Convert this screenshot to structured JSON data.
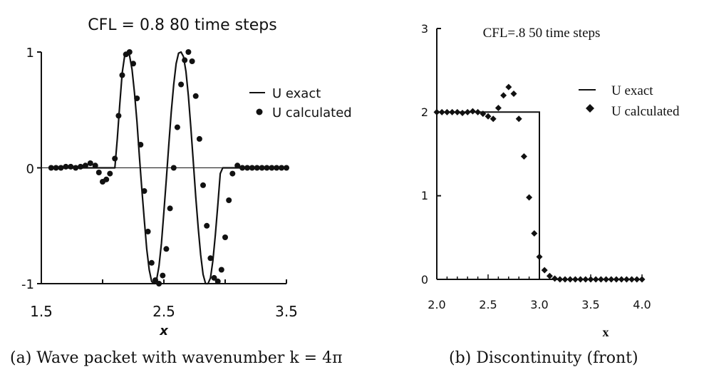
{
  "colors": {
    "ink": "#111111"
  },
  "chart_data": [
    {
      "type": "line",
      "title": "CFL = 0.8  80 time steps",
      "xlabel": "x",
      "ylabel": "",
      "xlim": [
        1.5,
        3.5
      ],
      "ylim": [
        -1,
        1
      ],
      "xticks": [
        "1.5",
        "2.5",
        "3.5"
      ],
      "yticks": [
        "-1",
        "0",
        "1"
      ],
      "legend": {
        "placement": "right-middle",
        "entries": [
          "U exact",
          "U calculated"
        ]
      },
      "caption": "(a)  Wave packet with wavenumber k = 4π",
      "series": [
        {
          "name": "U exact",
          "style": "line",
          "x": [
            1.6,
            1.7,
            1.8,
            1.9,
            2.0,
            2.05,
            2.1,
            2.12,
            2.14,
            2.16,
            2.18,
            2.2,
            2.22,
            2.24,
            2.26,
            2.28,
            2.3,
            2.32,
            2.34,
            2.36,
            2.38,
            2.4,
            2.42,
            2.44,
            2.46,
            2.48,
            2.5,
            2.52,
            2.54,
            2.56,
            2.58,
            2.6,
            2.62,
            2.64,
            2.66,
            2.68,
            2.7,
            2.72,
            2.74,
            2.76,
            2.78,
            2.8,
            2.82,
            2.84,
            2.86,
            2.88,
            2.9,
            2.92,
            2.94,
            2.96,
            2.98,
            3.0,
            3.02,
            3.04,
            3.06,
            3.08,
            3.1,
            3.2,
            3.3,
            3.4,
            3.5
          ],
          "y": [
            0,
            0,
            0,
            0,
            0,
            0,
            0.0,
            0.25,
            0.55,
            0.82,
            0.97,
            1.0,
            0.97,
            0.85,
            0.65,
            0.4,
            0.1,
            -0.18,
            -0.45,
            -0.7,
            -0.88,
            -0.98,
            -1.0,
            -0.97,
            -0.85,
            -0.65,
            -0.38,
            -0.1,
            0.2,
            0.48,
            0.72,
            0.9,
            0.99,
            1.0,
            0.96,
            0.83,
            0.62,
            0.35,
            0.05,
            -0.25,
            -0.52,
            -0.75,
            -0.92,
            -1.0,
            -1.0,
            -0.95,
            -0.8,
            -0.58,
            -0.32,
            -0.05,
            0.0,
            0,
            0,
            0,
            0,
            0,
            0,
            0,
            0,
            0,
            0
          ]
        },
        {
          "name": "U calculated",
          "style": "markers",
          "x": [
            1.58,
            1.62,
            1.66,
            1.7,
            1.74,
            1.78,
            1.82,
            1.86,
            1.9,
            1.94,
            1.97,
            2.0,
            2.03,
            2.06,
            2.1,
            2.13,
            2.16,
            2.19,
            2.22,
            2.25,
            2.28,
            2.31,
            2.34,
            2.37,
            2.4,
            2.43,
            2.46,
            2.49,
            2.52,
            2.55,
            2.58,
            2.61,
            2.64,
            2.67,
            2.7,
            2.73,
            2.76,
            2.79,
            2.82,
            2.85,
            2.88,
            2.91,
            2.94,
            2.97,
            3.0,
            3.03,
            3.06,
            3.1,
            3.14,
            3.18,
            3.22,
            3.26,
            3.3,
            3.34,
            3.38,
            3.42,
            3.46,
            3.5
          ],
          "y": [
            0,
            0,
            0,
            0.01,
            0.01,
            0,
            0.01,
            0.02,
            0.04,
            0.02,
            -0.04,
            -0.12,
            -0.1,
            -0.05,
            0.08,
            0.45,
            0.8,
            0.98,
            1.0,
            0.9,
            0.6,
            0.2,
            -0.2,
            -0.55,
            -0.82,
            -0.97,
            -1.0,
            -0.93,
            -0.7,
            -0.35,
            0.0,
            0.35,
            0.72,
            0.93,
            1.0,
            0.92,
            0.62,
            0.25,
            -0.15,
            -0.5,
            -0.78,
            -0.95,
            -0.98,
            -0.88,
            -0.6,
            -0.28,
            -0.05,
            0.02,
            0,
            0,
            0,
            0,
            0,
            0,
            0,
            0,
            0,
            0
          ]
        }
      ]
    },
    {
      "type": "line",
      "title": "CFL=.8    50 time steps",
      "xlabel": "x",
      "ylabel": "",
      "xlim": [
        2.0,
        4.0
      ],
      "ylim": [
        0,
        3
      ],
      "xticks": [
        "2.0",
        "2.5",
        "3.0",
        "3.5",
        "4.0"
      ],
      "yticks": [
        "0",
        "1",
        "2",
        "3"
      ],
      "legend": {
        "placement": "right-top",
        "entries": [
          "U exact",
          "U calculated"
        ]
      },
      "caption": "(b)  Discontinuity (front)",
      "series": [
        {
          "name": "U exact",
          "style": "line",
          "x": [
            2.0,
            3.0,
            3.0,
            4.0
          ],
          "y": [
            2,
            2,
            0,
            0
          ]
        },
        {
          "name": "U calculated",
          "style": "markers",
          "x": [
            2.0,
            2.05,
            2.1,
            2.15,
            2.2,
            2.25,
            2.3,
            2.35,
            2.4,
            2.45,
            2.5,
            2.55,
            2.6,
            2.65,
            2.7,
            2.75,
            2.8,
            2.85,
            2.9,
            2.95,
            3.0,
            3.05,
            3.1,
            3.15,
            3.2,
            3.25,
            3.3,
            3.35,
            3.4,
            3.45,
            3.5,
            3.55,
            3.6,
            3.65,
            3.7,
            3.75,
            3.8,
            3.85,
            3.9,
            3.95,
            4.0
          ],
          "y": [
            2.0,
            2.0,
            2.0,
            2.0,
            2.0,
            1.99,
            2.0,
            2.01,
            2.0,
            1.98,
            1.95,
            1.92,
            2.05,
            2.2,
            2.3,
            2.22,
            1.92,
            1.47,
            0.98,
            0.55,
            0.27,
            0.11,
            0.04,
            0.01,
            0,
            0,
            0,
            0,
            0,
            0,
            0,
            0,
            0,
            0,
            0,
            0,
            0,
            0,
            0,
            0,
            0
          ]
        }
      ]
    }
  ]
}
